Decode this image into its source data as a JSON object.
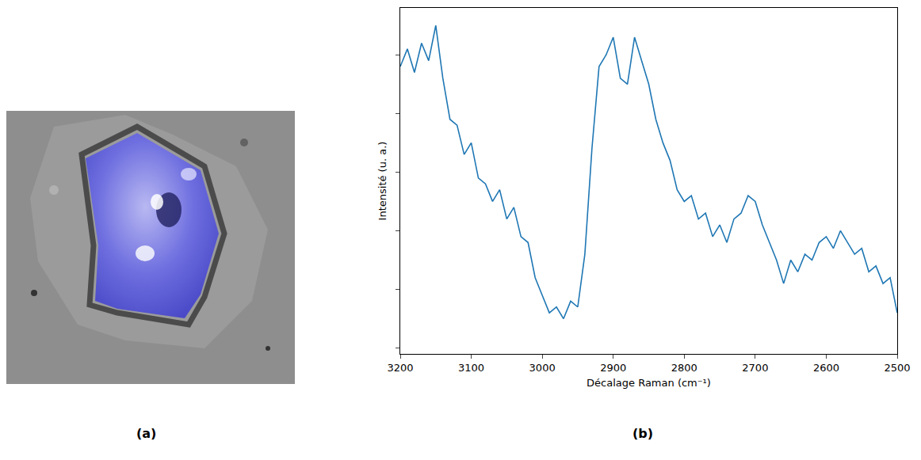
{
  "panel_labels": [
    "(a)",
    "(b)"
  ],
  "chart_data": {
    "type": "line",
    "x_label": "Décalage Raman (cm⁻¹)",
    "y_label": "Intensité (u. a.)",
    "x": [
      3200,
      3190,
      3180,
      3170,
      3160,
      3150,
      3140,
      3130,
      3120,
      3110,
      3100,
      3090,
      3080,
      3070,
      3060,
      3050,
      3040,
      3030,
      3020,
      3010,
      3000,
      2990,
      2980,
      2970,
      2960,
      2950,
      2940,
      2930,
      2920,
      2910,
      2900,
      2890,
      2880,
      2870,
      2860,
      2850,
      2840,
      2830,
      2820,
      2810,
      2800,
      2790,
      2780,
      2770,
      2760,
      2750,
      2740,
      2730,
      2720,
      2710,
      2700,
      2690,
      2680,
      2670,
      2660,
      2650,
      2640,
      2630,
      2620,
      2610,
      2600,
      2590,
      2580,
      2570,
      2560,
      2550,
      2540,
      2530,
      2520,
      2510,
      2500
    ],
    "values": [
      4.8,
      5.1,
      4.7,
      5.2,
      4.9,
      5.5,
      4.6,
      3.9,
      3.8,
      3.3,
      3.5,
      2.9,
      2.8,
      2.5,
      2.7,
      2.2,
      2.4,
      1.9,
      1.8,
      1.2,
      0.9,
      0.6,
      0.7,
      0.5,
      0.8,
      0.7,
      1.6,
      3.4,
      4.8,
      5.0,
      5.3,
      4.6,
      4.5,
      5.3,
      4.9,
      4.5,
      3.9,
      3.5,
      3.2,
      2.7,
      2.5,
      2.6,
      2.2,
      2.3,
      1.9,
      2.1,
      1.8,
      2.2,
      2.3,
      2.6,
      2.5,
      2.1,
      1.8,
      1.5,
      1.1,
      1.5,
      1.3,
      1.6,
      1.5,
      1.8,
      1.9,
      1.7,
      2.0,
      1.8,
      1.6,
      1.7,
      1.3,
      1.4,
      1.1,
      1.2,
      0.6
    ],
    "color": "#1f77b4",
    "xlim": [
      3200,
      2500
    ],
    "xticks": [
      3200,
      3100,
      3000,
      2900,
      2800,
      2700,
      2600,
      2500
    ],
    "ylim": [
      -0.1,
      5.8
    ],
    "yticks": [
      0,
      1,
      2,
      3,
      4,
      5
    ],
    "tick_labels": "x",
    "grid": false
  }
}
